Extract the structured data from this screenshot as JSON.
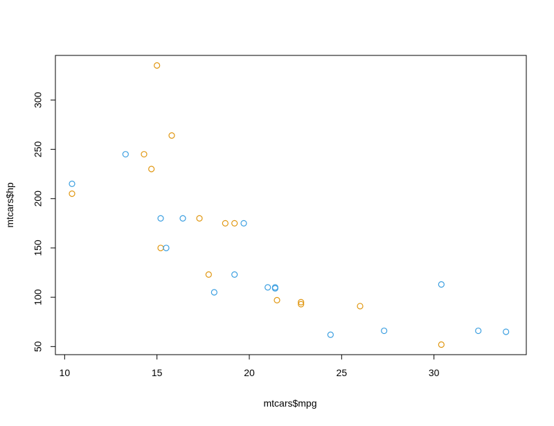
{
  "chart_data": {
    "type": "scatter",
    "title": "",
    "xlabel": "mtcars$mpg",
    "ylabel": "mtcars$hp",
    "xlim": [
      9.5,
      35.0
    ],
    "ylim": [
      41.8,
      345.2
    ],
    "x_ticks": [
      10,
      15,
      20,
      25,
      30
    ],
    "y_ticks": [
      50,
      100,
      150,
      200,
      250,
      300
    ],
    "grid": false,
    "legend": "none",
    "marker": "open-circle",
    "colors": {
      "blue": "#3a9ee0",
      "orange": "#e0960f",
      "axis": "#000000"
    },
    "points": [
      {
        "x": 10.4,
        "y": 215,
        "color": "blue"
      },
      {
        "x": 10.4,
        "y": 205,
        "color": "orange"
      },
      {
        "x": 13.3,
        "y": 245,
        "color": "blue"
      },
      {
        "x": 14.3,
        "y": 245,
        "color": "orange"
      },
      {
        "x": 14.7,
        "y": 230,
        "color": "orange"
      },
      {
        "x": 15.0,
        "y": 335,
        "color": "orange"
      },
      {
        "x": 15.2,
        "y": 180,
        "color": "blue"
      },
      {
        "x": 15.2,
        "y": 150,
        "color": "orange"
      },
      {
        "x": 15.5,
        "y": 150,
        "color": "blue"
      },
      {
        "x": 15.8,
        "y": 264,
        "color": "orange"
      },
      {
        "x": 16.4,
        "y": 180,
        "color": "blue"
      },
      {
        "x": 17.3,
        "y": 180,
        "color": "orange"
      },
      {
        "x": 17.8,
        "y": 123,
        "color": "orange"
      },
      {
        "x": 18.1,
        "y": 105,
        "color": "blue"
      },
      {
        "x": 18.7,
        "y": 175,
        "color": "orange"
      },
      {
        "x": 19.2,
        "y": 175,
        "color": "orange"
      },
      {
        "x": 19.2,
        "y": 123,
        "color": "blue"
      },
      {
        "x": 19.7,
        "y": 175,
        "color": "blue"
      },
      {
        "x": 21.0,
        "y": 110,
        "color": "blue"
      },
      {
        "x": 21.4,
        "y": 110,
        "color": "blue"
      },
      {
        "x": 21.4,
        "y": 109,
        "color": "blue"
      },
      {
        "x": 21.5,
        "y": 97,
        "color": "orange"
      },
      {
        "x": 22.8,
        "y": 95,
        "color": "orange"
      },
      {
        "x": 22.8,
        "y": 93,
        "color": "orange"
      },
      {
        "x": 24.4,
        "y": 62,
        "color": "blue"
      },
      {
        "x": 26.0,
        "y": 91,
        "color": "orange"
      },
      {
        "x": 27.3,
        "y": 66,
        "color": "blue"
      },
      {
        "x": 30.4,
        "y": 113,
        "color": "blue"
      },
      {
        "x": 30.4,
        "y": 52,
        "color": "orange"
      },
      {
        "x": 32.4,
        "y": 66,
        "color": "blue"
      },
      {
        "x": 33.9,
        "y": 65,
        "color": "blue"
      }
    ]
  }
}
